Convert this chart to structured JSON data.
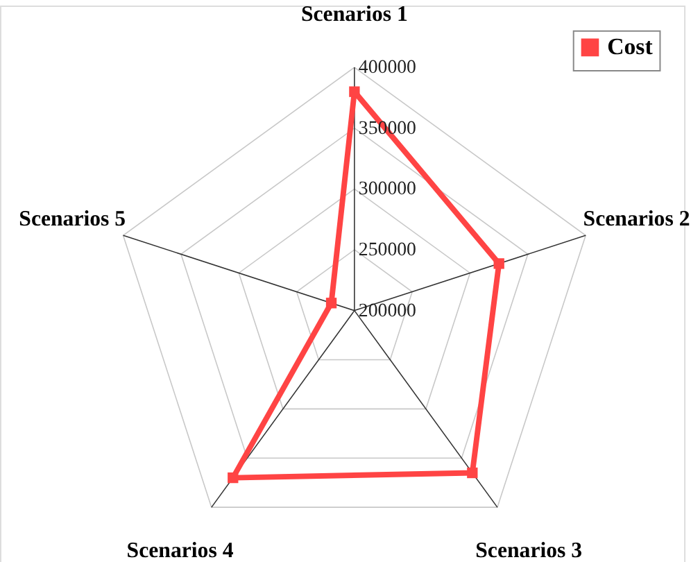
{
  "chart_data": {
    "type": "radar",
    "categories": [
      "Scenarios 1",
      "Scenarios 2",
      "Scenarios 3",
      "Scenarios 4",
      "Scenarios 5"
    ],
    "series": [
      {
        "name": "Cost",
        "color": "#ff4444",
        "values": [
          380000,
          325000,
          365000,
          370000,
          220000
        ]
      }
    ],
    "ylim": [
      200000,
      400000
    ],
    "yticks": [
      200000,
      250000,
      300000,
      350000,
      400000
    ],
    "grid": true,
    "legend": "top right",
    "marker": "square",
    "line_style": "solid"
  }
}
